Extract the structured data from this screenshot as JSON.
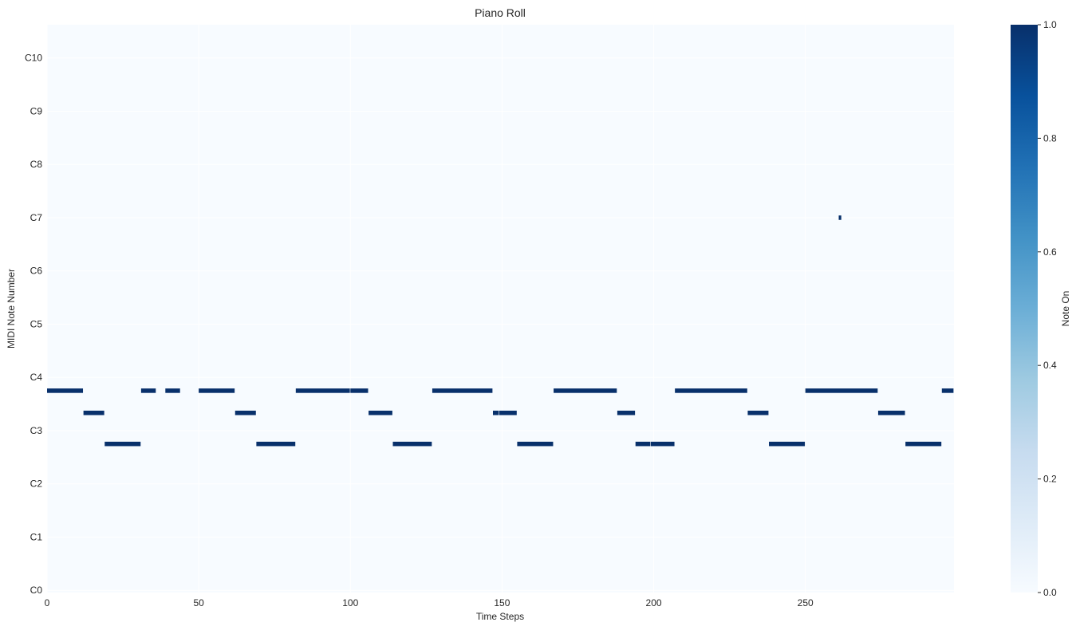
{
  "chart_data": {
    "type": "heatmap",
    "title": "Piano Roll",
    "xlabel": "Time Steps",
    "ylabel": "MIDI Note Number",
    "xlim": [
      0,
      299
    ],
    "ylim": [
      0,
      128
    ],
    "x_ticks": [
      0,
      50,
      100,
      150,
      200,
      250
    ],
    "y_ticks": [
      {
        "value": 0,
        "label": "C0"
      },
      {
        "value": 12,
        "label": "C1"
      },
      {
        "value": 24,
        "label": "C2"
      },
      {
        "value": 36,
        "label": "C3"
      },
      {
        "value": 48,
        "label": "C4"
      },
      {
        "value": 60,
        "label": "C5"
      },
      {
        "value": 72,
        "label": "C6"
      },
      {
        "value": 84,
        "label": "C7"
      },
      {
        "value": 96,
        "label": "C8"
      },
      {
        "value": 108,
        "label": "C9"
      },
      {
        "value": 120,
        "label": "C10"
      }
    ],
    "grid": true,
    "colormap": "Blues",
    "colorbar": {
      "label": "Note On",
      "range": [
        0,
        1
      ],
      "ticks": [
        "0.0",
        "0.2",
        "0.4",
        "0.6",
        "0.8",
        "1.0"
      ]
    },
    "notes": [
      {
        "pitch": 45,
        "start": 0,
        "end": 12
      },
      {
        "pitch": 40,
        "start": 12,
        "end": 19
      },
      {
        "pitch": 33,
        "start": 19,
        "end": 31
      },
      {
        "pitch": 45,
        "start": 31,
        "end": 36
      },
      {
        "pitch": 45,
        "start": 39,
        "end": 44
      },
      {
        "pitch": 45,
        "start": 50,
        "end": 62
      },
      {
        "pitch": 40,
        "start": 62,
        "end": 69
      },
      {
        "pitch": 33,
        "start": 69,
        "end": 82
      },
      {
        "pitch": 45,
        "start": 82,
        "end": 100
      },
      {
        "pitch": 45,
        "start": 100,
        "end": 106
      },
      {
        "pitch": 40,
        "start": 106,
        "end": 114
      },
      {
        "pitch": 33,
        "start": 114,
        "end": 127
      },
      {
        "pitch": 45,
        "start": 127,
        "end": 147
      },
      {
        "pitch": 40,
        "start": 147,
        "end": 149
      },
      {
        "pitch": 40,
        "start": 149,
        "end": 155
      },
      {
        "pitch": 33,
        "start": 155,
        "end": 167
      },
      {
        "pitch": 45,
        "start": 167,
        "end": 188
      },
      {
        "pitch": 40,
        "start": 188,
        "end": 194
      },
      {
        "pitch": 33,
        "start": 194,
        "end": 199
      },
      {
        "pitch": 33,
        "start": 199,
        "end": 207
      },
      {
        "pitch": 45,
        "start": 207,
        "end": 231
      },
      {
        "pitch": 40,
        "start": 231,
        "end": 238
      },
      {
        "pitch": 33,
        "start": 238,
        "end": 250
      },
      {
        "pitch": 45,
        "start": 250,
        "end": 274
      },
      {
        "pitch": 40,
        "start": 274,
        "end": 283
      },
      {
        "pitch": 33,
        "start": 283,
        "end": 295
      },
      {
        "pitch": 45,
        "start": 295,
        "end": 299
      },
      {
        "pitch": 84,
        "start": 261,
        "end": 262
      }
    ]
  }
}
